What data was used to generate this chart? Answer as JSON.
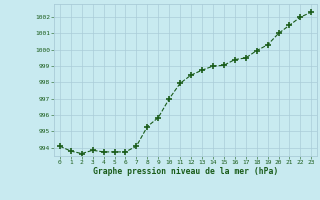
{
  "x": [
    0,
    1,
    2,
    3,
    4,
    5,
    6,
    7,
    8,
    9,
    10,
    11,
    12,
    13,
    14,
    15,
    16,
    17,
    18,
    19,
    20,
    21,
    22,
    23
  ],
  "y": [
    994.1,
    993.8,
    993.65,
    993.85,
    993.75,
    993.75,
    993.75,
    994.1,
    995.3,
    995.85,
    997.0,
    997.95,
    998.45,
    998.75,
    999.0,
    999.05,
    999.4,
    999.5,
    999.95,
    1000.3,
    1001.0,
    1001.5,
    1002.0,
    1002.3
  ],
  "ylim": [
    993.5,
    1002.8
  ],
  "yticks": [
    994,
    995,
    996,
    997,
    998,
    999,
    1000,
    1001,
    1002
  ],
  "xticks": [
    0,
    1,
    2,
    3,
    4,
    5,
    6,
    7,
    8,
    9,
    10,
    11,
    12,
    13,
    14,
    15,
    16,
    17,
    18,
    19,
    20,
    21,
    22,
    23
  ],
  "xlabel": "Graphe pression niveau de la mer (hPa)",
  "line_color": "#1a5c1a",
  "marker_color": "#1a5c1a",
  "bg_color": "#c8eaf0",
  "grid_color": "#aaccd8",
  "axis_label_color": "#1a5c1a",
  "tick_label_color": "#1a5c1a",
  "spine_color": "#aaccd8"
}
